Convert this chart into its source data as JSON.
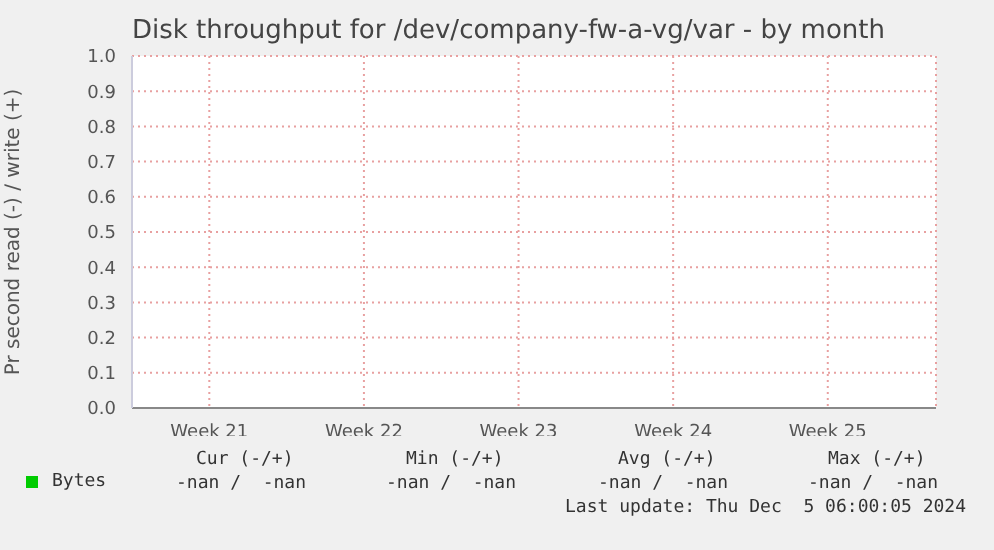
{
  "chart_data": {
    "type": "line",
    "title": "Disk throughput for /dev/company-fw-a-vg/var - by month",
    "ylabel": "Pr second read (-) / write (+)",
    "categories": [
      "Week 21",
      "Week 22",
      "Week 23",
      "Week 24",
      "Week 25"
    ],
    "series": [
      {
        "name": "Bytes",
        "color": "#00cc00",
        "values": [
          null,
          null,
          null,
          null,
          null
        ]
      }
    ],
    "ylim": [
      0,
      1
    ],
    "yticks": [
      {
        "value": 0,
        "label": "0.0"
      },
      {
        "value": 0.1,
        "label": "0.1"
      },
      {
        "value": 0.2,
        "label": "0.2"
      },
      {
        "value": 0.3,
        "label": "0.3"
      },
      {
        "value": 0.4,
        "label": "0.4"
      },
      {
        "value": 0.5,
        "label": "0.5"
      },
      {
        "value": 0.6,
        "label": "0.6"
      },
      {
        "value": 0.7,
        "label": "0.7"
      },
      {
        "value": 0.8,
        "label": "0.8"
      },
      {
        "value": 0.9,
        "label": "0.9"
      },
      {
        "value": 1,
        "label": "1.0"
      }
    ],
    "grid": true,
    "legend": "bottom left",
    "annotations": [
      "Cur (-/+)",
      "Min (-/+)",
      "Avg (-/+)",
      "Max (-/+)",
      "-nan /  -nan",
      "-nan /  -nan",
      "-nan /  -nan",
      "-nan /  -nan",
      "Last update: Thu Dec  5 06:00:05 2024"
    ]
  }
}
